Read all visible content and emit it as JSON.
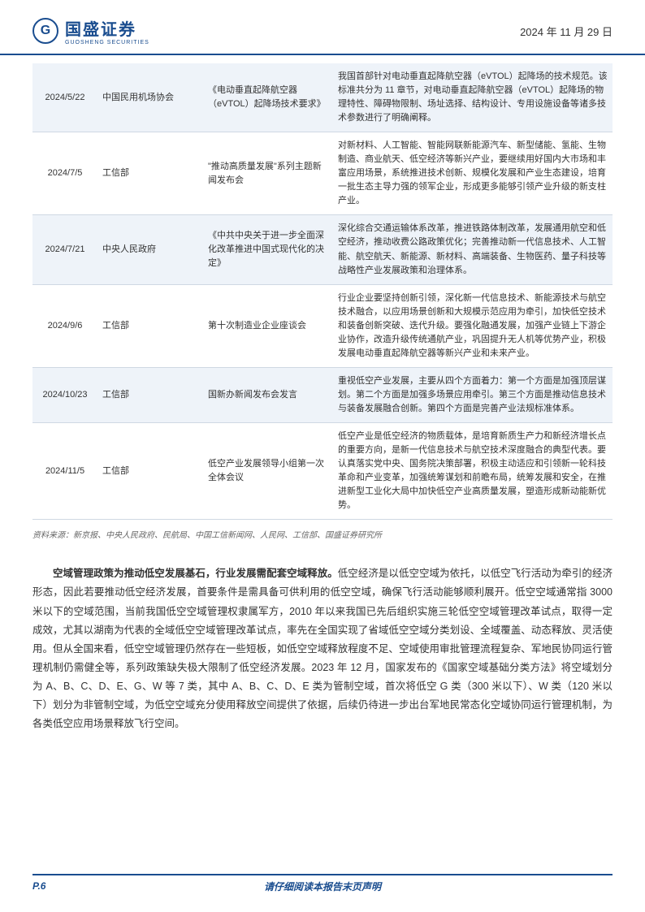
{
  "header": {
    "company_cn": "国盛证券",
    "company_sub": "GUOSHENG SECURITIES",
    "date": "2024 年 11 月 29 日"
  },
  "table": {
    "rows": [
      {
        "date": "2024/5/22",
        "org": "中国民用机场协会",
        "title": "《电动垂直起降航空器（eVTOL）起降场技术要求》",
        "desc": "我国首部针对电动垂直起降航空器（eVTOL）起降场的技术规范。该标准共分为 11 章节，对电动垂直起降航空器（eVTOL）起降场的物理特性、障碍物限制、场址选择、结构设计、专用设施设备等诸多技术参数进行了明确阐释。",
        "shaded": true
      },
      {
        "date": "2024/7/5",
        "org": "工信部",
        "title": "\"推动高质量发展\"系列主题新闻发布会",
        "desc": "对新材料、人工智能、智能网联新能源汽车、新型储能、氢能、生物制造、商业航天、低空经济等新兴产业，要继续用好国内大市场和丰富应用场景，系统推进技术创新、规模化发展和产业生态建设，培育一批生态主导力强的领军企业，形成更多能够引领产业升级的新支柱产业。",
        "shaded": false
      },
      {
        "date": "2024/7/21",
        "org": "中央人民政府",
        "title": "《中共中央关于进一步全面深化改革推进中国式现代化的决定》",
        "desc": "深化综合交通运输体系改革，推进铁路体制改革，发展通用航空和低空经济，推动收费公路政策优化；完善推动新一代信息技术、人工智能、航空航天、新能源、新材料、高端装备、生物医药、量子科技等战略性产业发展政策和治理体系。",
        "shaded": true
      },
      {
        "date": "2024/9/6",
        "org": "工信部",
        "title": "第十次制造业企业座谈会",
        "desc": "行业企业要坚持创新引领，深化新一代信息技术、新能源技术与航空技术融合，以应用场景创新和大规模示范应用为牵引，加快低空技术和装备创新突破、迭代升级。要强化融通发展，加强产业链上下游企业协作，改造升级传统通航产业，巩固提升无人机等优势产业，积极发展电动垂直起降航空器等新兴产业和未来产业。",
        "shaded": false
      },
      {
        "date": "2024/10/23",
        "org": "工信部",
        "title": "国新办新闻发布会发言",
        "desc": "重视低空产业发展，主要从四个方面着力：第一个方面是加强顶层谋划。第二个方面是加强多场景应用牵引。第三个方面是推动信息技术与装备发展融合创新。第四个方面是完善产业法规标准体系。",
        "shaded": true
      },
      {
        "date": "2024/11/5",
        "org": "工信部",
        "title": "低空产业发展领导小组第一次全体会议",
        "desc": "低空产业是低空经济的物质载体，是培育新质生产力和新经济增长点的重要方向，是新一代信息技术与航空技术深度融合的典型代表。要认真落实党中央、国务院决策部署，积极主动适应和引领新一轮科技革命和产业变革，加强统筹谋划和前瞻布局，统筹发展和安全，在推进新型工业化大局中加快低空产业高质量发展，塑造形成新动能新优势。",
        "shaded": false
      }
    ],
    "source": "资料来源：新京报、中央人民政府、民航局、中国工信新闻网、人民网、工信部、国盛证券研究所"
  },
  "body": {
    "lead": "空域管理政策为推动低空发展基石，行业发展需配套空域释放。",
    "text": "低空经济是以低空空域为依托，以低空飞行活动为牵引的经济形态，因此若要推动低空经济发展，首要条件是需具备可供利用的低空空域，确保飞行活动能够顺利展开。低空空域通常指 3000 米以下的空域范围，当前我国低空空域管理权隶属军方，2010 年以来我国已先后组织实施三轮低空空域管理改革试点，取得一定成效，尤其以湖南为代表的全域低空空域管理改革试点，率先在全国实现了省域低空空域分类划设、全域覆盖、动态释放、灵活使用。但从全国来看，低空空域管理仍然存在一些短板，如低空空域释放程度不足、空域使用审批管理流程复杂、军地民协同运行管理机制仍需健全等，系列政策缺失极大限制了低空经济发展。2023 年 12 月，国家发布的《国家空域基础分类方法》将空域划分为 A、B、C、D、E、G、W 等 7 类，其中 A、B、C、D、E 类为管制空域，首次将低空 G 类（300 米以下）、W 类（120 米以下）划分为非管制空域，为低空空域充分使用释放空间提供了依据，后续仍待进一步出台军地民常态化空域协同运行管理机制，为各类低空应用场景释放飞行空间。"
  },
  "footer": {
    "page": "P.6",
    "disclaimer": "请仔细阅读本报告末页声明"
  },
  "styles": {
    "brand_color": "#1a4d8f",
    "shade_color": "#eef3f9",
    "border_color": "#cfd8e3"
  }
}
